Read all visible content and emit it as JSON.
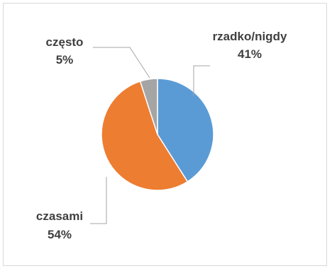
{
  "chart_data": {
    "type": "pie",
    "title": "",
    "slices": [
      {
        "label": "rzadko/nigdy",
        "value": 41,
        "display": "41%",
        "color": "#5b9bd5"
      },
      {
        "label": "czasami",
        "value": 54,
        "display": "54%",
        "color": "#ed7d31"
      },
      {
        "label": "często",
        "value": 5,
        "display": "5%",
        "color": "#a5a5a5"
      }
    ],
    "legend": "none",
    "data_labels": "outside with leader lines"
  }
}
